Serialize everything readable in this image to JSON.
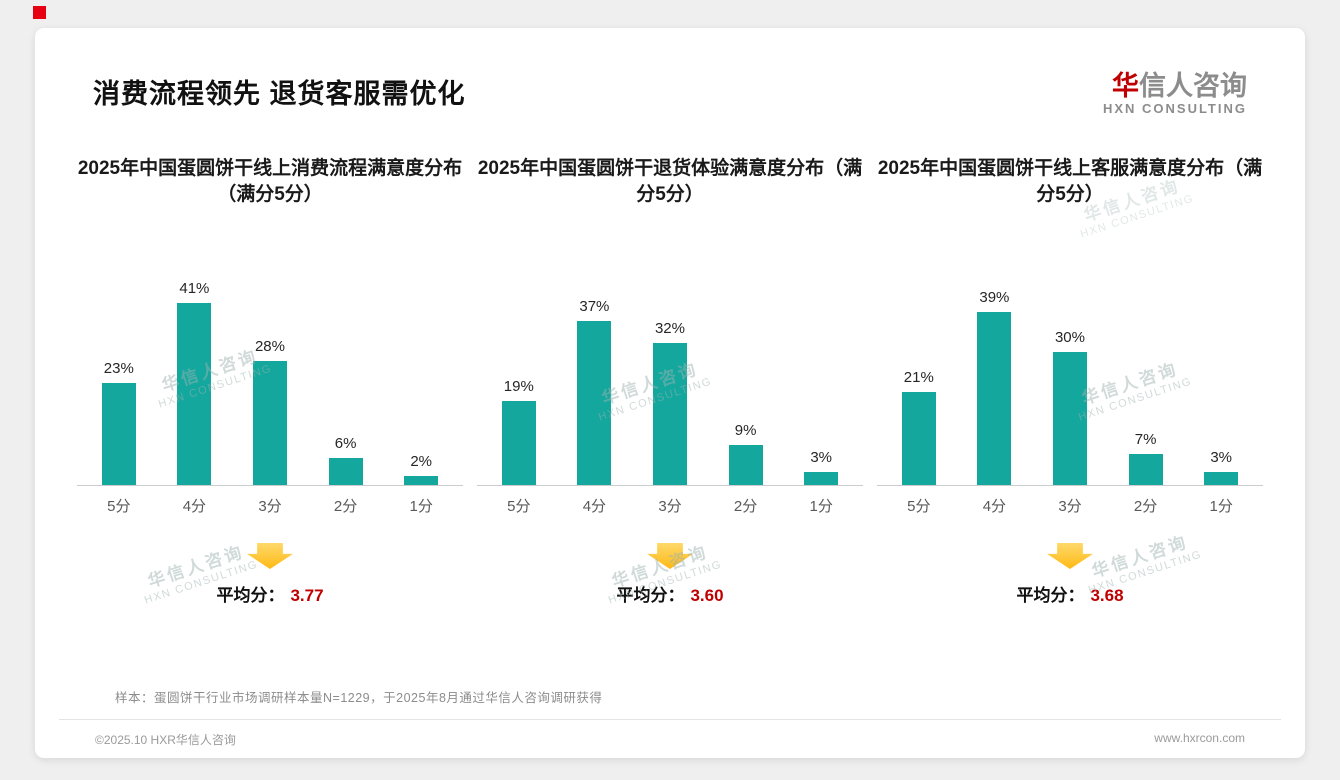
{
  "page": {
    "title": "消费流程领先 退货客服需优化",
    "logo": {
      "accent_char": "华",
      "rest": "信人咨询",
      "sub": "HXN CONSULTING"
    },
    "note": "样本：蛋圆饼干行业市场调研样本量N=1229，于2025年8月通过华信人咨询调研获得",
    "footer_left": "©2025.10 HXR华信人咨询",
    "footer_right": "www.hxrcon.com",
    "watermark": {
      "line1": "华信人咨询",
      "line2": "HXN CONSULTING"
    }
  },
  "colors": {
    "bar": "#14A79D",
    "avg_value": "#C00000",
    "arrow": "#FFC000",
    "accent": "#E60012"
  },
  "chart_data": [
    {
      "type": "bar",
      "title": "2025年中国蛋圆饼干线上消费流程满意度分布（满分5分）",
      "categories": [
        "5分",
        "4分",
        "3分",
        "2分",
        "1分"
      ],
      "values": [
        23,
        41,
        28,
        6,
        2
      ],
      "value_labels": [
        "23%",
        "41%",
        "28%",
        "6%",
        "2%"
      ],
      "ylim": [
        0,
        45
      ],
      "grid": false,
      "avg_label": "平均分：",
      "avg_value": "3.77"
    },
    {
      "type": "bar",
      "title": "2025年中国蛋圆饼干退货体验满意度分布（满分5分）",
      "categories": [
        "5分",
        "4分",
        "3分",
        "2分",
        "1分"
      ],
      "values": [
        19,
        37,
        32,
        9,
        3
      ],
      "value_labels": [
        "19%",
        "37%",
        "32%",
        "9%",
        "3%"
      ],
      "ylim": [
        0,
        45
      ],
      "grid": false,
      "avg_label": "平均分：",
      "avg_value": "3.60"
    },
    {
      "type": "bar",
      "title": "2025年中国蛋圆饼干线上客服满意度分布（满分5分）",
      "categories": [
        "5分",
        "4分",
        "3分",
        "2分",
        "1分"
      ],
      "values": [
        21,
        39,
        30,
        7,
        3
      ],
      "value_labels": [
        "21%",
        "39%",
        "30%",
        "7%",
        "3%"
      ],
      "ylim": [
        0,
        45
      ],
      "grid": false,
      "avg_label": "平均分：",
      "avg_value": "3.68"
    }
  ]
}
